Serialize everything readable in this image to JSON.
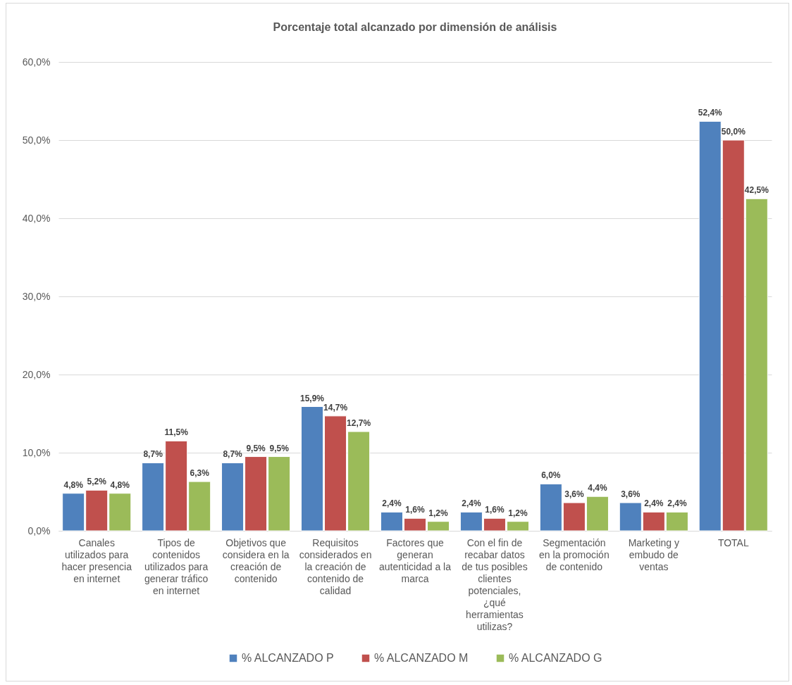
{
  "chart_data": {
    "type": "bar",
    "title": "Porcentaje total alcanzado por dimensión de análisis",
    "categories": [
      "Canales utilizados para hacer presencia en internet",
      "Tipos de contenidos utilizados para generar tráfico en internet",
      "Objetivos que considera en la creación de contenido",
      "Requisitos considerados en la creación de contenido de calidad",
      "Factores que generan autenticidad a la marca",
      "Con el fin de recabar datos de tus posibles clientes potenciales, ¿qué herramientas utilizas?",
      "Segmentación en la promoción de contenido",
      "Marketing y embudo de ventas",
      "TOTAL"
    ],
    "series": [
      {
        "name": "% ALCANZADO P",
        "color": "#4f81bd",
        "values": [
          4.8,
          8.7,
          8.7,
          15.9,
          2.4,
          2.4,
          6.0,
          3.6,
          52.4
        ],
        "value_labels": [
          "4,8%",
          "8,7%",
          "8,7%",
          "15,9%",
          "2,4%",
          "2,4%",
          "6,0%",
          "3,6%",
          "52,4%"
        ]
      },
      {
        "name": "% ALCANZADO M",
        "color": "#c0504d",
        "values": [
          5.2,
          11.5,
          9.5,
          14.7,
          1.6,
          1.6,
          3.6,
          2.4,
          50.0
        ],
        "value_labels": [
          "5,2%",
          "11,5%",
          "9,5%",
          "14,7%",
          "1,6%",
          "1,6%",
          "3,6%",
          "2,4%",
          "50,0%"
        ]
      },
      {
        "name": "% ALCANZADO G",
        "color": "#9bbb59",
        "values": [
          4.8,
          6.3,
          9.5,
          12.7,
          1.2,
          1.2,
          4.4,
          2.4,
          42.5
        ],
        "value_labels": [
          "4,8%",
          "6,3%",
          "9,5%",
          "12,7%",
          "1,2%",
          "1,2%",
          "4,4%",
          "2,4%",
          "42,5%"
        ]
      }
    ],
    "ylim": [
      0,
      60
    ],
    "yticks": [
      {
        "value": 0,
        "label": "0,0%"
      },
      {
        "value": 10,
        "label": "10,0%"
      },
      {
        "value": 20,
        "label": "20,0%"
      },
      {
        "value": 30,
        "label": "30,0%"
      },
      {
        "value": 40,
        "label": "40,0%"
      },
      {
        "value": 50,
        "label": "50,0%"
      },
      {
        "value": 60,
        "label": "60,0%"
      }
    ],
    "grid": "y",
    "legend": "bottom"
  }
}
